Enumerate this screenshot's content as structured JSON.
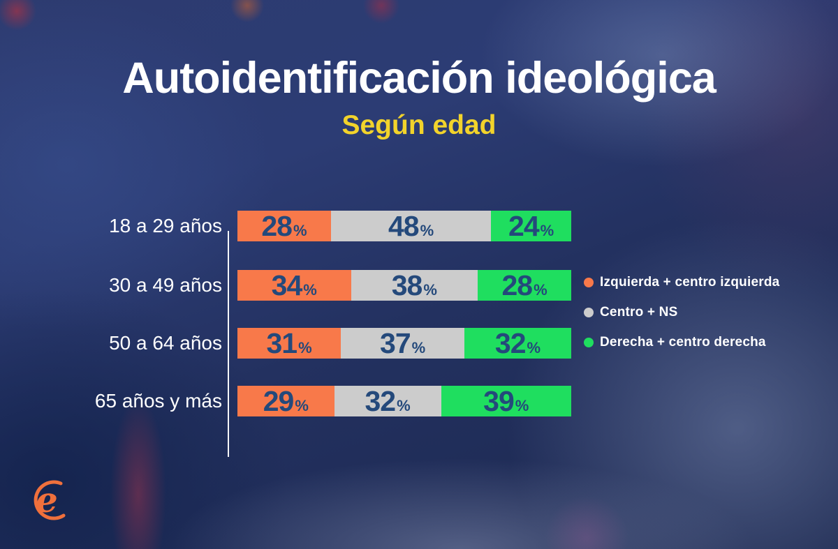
{
  "title": "Autoidentificación ideológica",
  "subtitle": "Según edad",
  "chart_data": {
    "type": "bar",
    "orientation": "horizontal",
    "stacked": true,
    "unit": "%",
    "xlim": [
      0,
      100
    ],
    "grid": false,
    "legend_position": "right",
    "categories": [
      "18 a 29 años",
      "30 a 49 años",
      "50 a 64 años",
      "65 años y más"
    ],
    "series": [
      {
        "name": "Izquierda + centro izquierda",
        "color": "#F8794A",
        "values": [
          28,
          34,
          31,
          29
        ]
      },
      {
        "name": "Centro + NS",
        "color": "#CCCCCC",
        "values": [
          48,
          38,
          37,
          32
        ]
      },
      {
        "name": "Derecha + centro derecha",
        "color": "#1FDE5F",
        "values": [
          24,
          28,
          32,
          39
        ]
      }
    ],
    "value_label_color": "#24497B"
  },
  "colors": {
    "title": "#FFFFFF",
    "subtitle": "#F2D32B",
    "axis_line": "#FFFFFF",
    "logo": "#F0703C",
    "background_base": "#24315F"
  },
  "logo": {
    "glyph": "e"
  }
}
